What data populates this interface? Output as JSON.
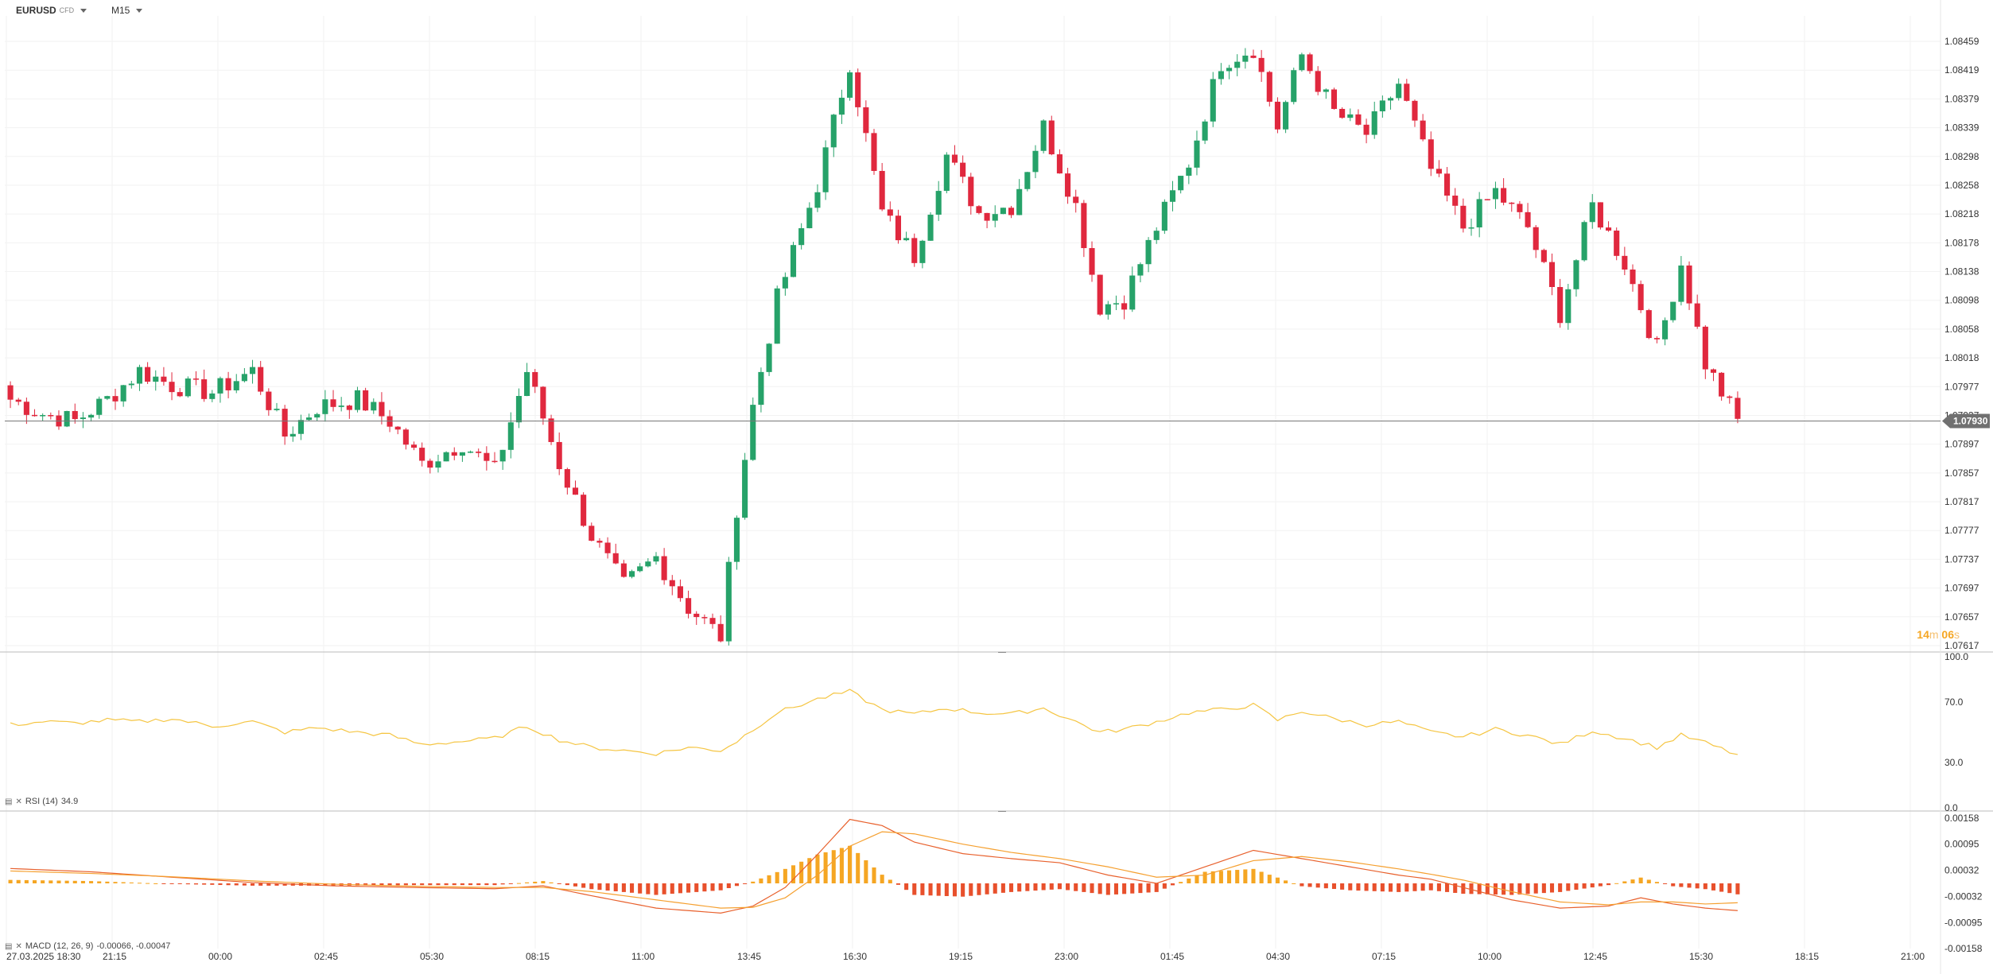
{
  "header": {
    "symbol": "EURUSD",
    "symbol_suffix": "CFD",
    "timeframe": "M15"
  },
  "countdown": {
    "minutes": "14",
    "minutes_unit": "m",
    "seconds": "06",
    "seconds_unit": "s"
  },
  "rsi": {
    "label": "RSI (14)",
    "value": "34.9",
    "levels": [
      "100.0",
      "70.0",
      "30.0",
      "0.0"
    ],
    "color": "#f5c542"
  },
  "macd": {
    "label": "MACD (12, 26, 9)",
    "values": "-0.00066, -0.00047",
    "ticks": [
      "0.00158",
      "0.00095",
      "0.00032",
      "-0.00032",
      "-0.00095",
      "-0.00158"
    ]
  },
  "colors": {
    "up": "#26a269",
    "down": "#e0283e",
    "macd_line": "#e8602c",
    "signal_line": "#f5a030",
    "hist_pos": "#f5a623",
    "hist_neg": "#e8502c"
  },
  "chart_data": {
    "type": "candlestick",
    "y_ticks": [
      "1.08459",
      "1.08419",
      "1.08379",
      "1.08339",
      "1.08298",
      "1.08258",
      "1.08218",
      "1.08178",
      "1.08138",
      "1.08098",
      "1.08058",
      "1.08018",
      "1.07977",
      "1.07937",
      "1.07897",
      "1.07857",
      "1.07817",
      "1.07777",
      "1.07737",
      "1.07697",
      "1.07657",
      "1.07617"
    ],
    "y_range": [
      1.07617,
      1.08459
    ],
    "current_price": "1.07930",
    "x_ticks": [
      "27.03.2025 18:30",
      "21:15",
      "00:00",
      "02:45",
      "05:30",
      "08:15",
      "11:00",
      "13:45",
      "16:30",
      "19:15",
      "23:00",
      "01:45",
      "04:30",
      "07:15",
      "10:00",
      "12:45",
      "15:30",
      "18:15",
      "21:00"
    ],
    "close_anchors": [
      [
        0,
        1.0796
      ],
      [
        4,
        1.0794
      ],
      [
        8,
        1.0793
      ],
      [
        12,
        1.0796
      ],
      [
        16,
        1.08
      ],
      [
        20,
        1.0798
      ],
      [
        25,
        1.0797
      ],
      [
        30,
        1.08
      ],
      [
        34,
        1.0791
      ],
      [
        38,
        1.0795
      ],
      [
        43,
        1.0796
      ],
      [
        47,
        1.0793
      ],
      [
        51,
        1.0787
      ],
      [
        56,
        1.079
      ],
      [
        60,
        1.0786
      ],
      [
        64,
        1.08
      ],
      [
        68,
        1.0787
      ],
      [
        72,
        1.0777
      ],
      [
        76,
        1.077
      ],
      [
        80,
        1.0774
      ],
      [
        84,
        1.0767
      ],
      [
        88,
        1.0763
      ],
      [
        90,
        1.0781
      ],
      [
        92,
        1.0795
      ],
      [
        95,
        1.081
      ],
      [
        100,
        1.0826
      ],
      [
        104,
        1.0843
      ],
      [
        108,
        1.0822
      ],
      [
        112,
        1.0816
      ],
      [
        116,
        1.083
      ],
      [
        120,
        1.0822
      ],
      [
        124,
        1.0823
      ],
      [
        128,
        1.0834
      ],
      [
        132,
        1.0823
      ],
      [
        135,
        1.0809
      ],
      [
        138,
        1.081
      ],
      [
        142,
        1.082
      ],
      [
        146,
        1.0829
      ],
      [
        150,
        1.0843
      ],
      [
        154,
        1.0845
      ],
      [
        157,
        1.0834
      ],
      [
        160,
        1.0844
      ],
      [
        164,
        1.0836
      ],
      [
        168,
        1.0833
      ],
      [
        172,
        1.084
      ],
      [
        176,
        1.0828
      ],
      [
        180,
        1.082
      ],
      [
        184,
        1.0825
      ],
      [
        188,
        1.082
      ],
      [
        192,
        1.0808
      ],
      [
        196,
        1.0823
      ],
      [
        200,
        1.0815
      ],
      [
        204,
        1.0803
      ],
      [
        207,
        1.0815
      ],
      [
        210,
        1.0801
      ],
      [
        213,
        1.0795
      ],
      [
        214,
        1.0793
      ]
    ],
    "rsi_anchors": [
      [
        0,
        55
      ],
      [
        4,
        57
      ],
      [
        8,
        56
      ],
      [
        12,
        58
      ],
      [
        16,
        57
      ],
      [
        20,
        59
      ],
      [
        25,
        54
      ],
      [
        30,
        57
      ],
      [
        34,
        50
      ],
      [
        38,
        53
      ],
      [
        43,
        50
      ],
      [
        47,
        48
      ],
      [
        51,
        42
      ],
      [
        56,
        44
      ],
      [
        60,
        46
      ],
      [
        64,
        54
      ],
      [
        68,
        45
      ],
      [
        72,
        40
      ],
      [
        76,
        38
      ],
      [
        80,
        36
      ],
      [
        84,
        40
      ],
      [
        88,
        38
      ],
      [
        90,
        44
      ],
      [
        92,
        52
      ],
      [
        95,
        63
      ],
      [
        100,
        72
      ],
      [
        104,
        77
      ],
      [
        108,
        65
      ],
      [
        112,
        62
      ],
      [
        116,
        66
      ],
      [
        120,
        63
      ],
      [
        124,
        62
      ],
      [
        128,
        66
      ],
      [
        132,
        57
      ],
      [
        135,
        50
      ],
      [
        138,
        52
      ],
      [
        142,
        57
      ],
      [
        146,
        63
      ],
      [
        150,
        65
      ],
      [
        154,
        68
      ],
      [
        157,
        58
      ],
      [
        160,
        64
      ],
      [
        164,
        59
      ],
      [
        168,
        55
      ],
      [
        172,
        57
      ],
      [
        176,
        50
      ],
      [
        180,
        47
      ],
      [
        184,
        52
      ],
      [
        188,
        48
      ],
      [
        192,
        42
      ],
      [
        196,
        51
      ],
      [
        200,
        46
      ],
      [
        204,
        40
      ],
      [
        207,
        48
      ],
      [
        210,
        43
      ],
      [
        213,
        37
      ],
      [
        214,
        35
      ]
    ],
    "macd_anchors": [
      [
        0,
        0.00036
      ],
      [
        10,
        0.00028
      ],
      [
        20,
        0.00015
      ],
      [
        30,
        2e-05
      ],
      [
        40,
        -6e-05
      ],
      [
        50,
        -0.0001
      ],
      [
        60,
        -0.00013
      ],
      [
        66,
        -6e-05
      ],
      [
        72,
        -0.0003
      ],
      [
        80,
        -0.0006
      ],
      [
        88,
        -0.00072
      ],
      [
        92,
        -0.00055
      ],
      [
        96,
        -0.0001
      ],
      [
        100,
        0.0007
      ],
      [
        104,
        0.00155
      ],
      [
        108,
        0.0014
      ],
      [
        112,
        0.001
      ],
      [
        118,
        0.00072
      ],
      [
        124,
        0.0006
      ],
      [
        130,
        0.0005
      ],
      [
        136,
        0.0002
      ],
      [
        142,
        0.0
      ],
      [
        148,
        0.0004
      ],
      [
        154,
        0.0008
      ],
      [
        160,
        0.0006
      ],
      [
        166,
        0.0004
      ],
      [
        172,
        0.0002
      ],
      [
        176,
        0.0001
      ],
      [
        180,
        -0.0001
      ],
      [
        186,
        -0.0004
      ],
      [
        192,
        -0.0006
      ],
      [
        198,
        -0.00055
      ],
      [
        202,
        -0.00035
      ],
      [
        206,
        -0.0005
      ],
      [
        210,
        -0.0006
      ],
      [
        214,
        -0.00066
      ]
    ],
    "signal_anchors": [
      [
        0,
        0.0003
      ],
      [
        10,
        0.00024
      ],
      [
        20,
        0.00016
      ],
      [
        30,
        6e-05
      ],
      [
        40,
        -2e-05
      ],
      [
        50,
        -7e-05
      ],
      [
        60,
        -0.0001
      ],
      [
        66,
        -0.0001
      ],
      [
        72,
        -0.0002
      ],
      [
        80,
        -0.0004
      ],
      [
        88,
        -0.0006
      ],
      [
        92,
        -0.00058
      ],
      [
        96,
        -0.00035
      ],
      [
        100,
        0.0002
      ],
      [
        104,
        0.0009
      ],
      [
        108,
        0.00125
      ],
      [
        112,
        0.0012
      ],
      [
        118,
        0.00095
      ],
      [
        124,
        0.00075
      ],
      [
        130,
        0.0006
      ],
      [
        136,
        0.0004
      ],
      [
        142,
        0.00015
      ],
      [
        148,
        0.0002
      ],
      [
        154,
        0.00055
      ],
      [
        160,
        0.00065
      ],
      [
        166,
        0.00052
      ],
      [
        172,
        0.00035
      ],
      [
        176,
        0.00022
      ],
      [
        180,
        8e-05
      ],
      [
        186,
        -0.0002
      ],
      [
        192,
        -0.00045
      ],
      [
        198,
        -0.00052
      ],
      [
        202,
        -0.00045
      ],
      [
        206,
        -0.00045
      ],
      [
        210,
        -0.0005
      ],
      [
        214,
        -0.00047
      ]
    ],
    "macd_range": [
      -0.00158,
      0.00158
    ]
  }
}
